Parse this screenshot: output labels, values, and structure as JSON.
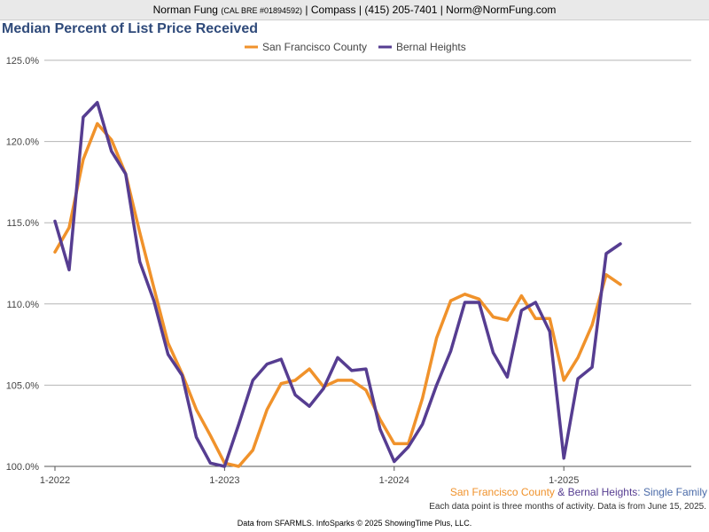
{
  "header": {
    "agent_name": "Norman Fung",
    "license": "(CAL BRE #01894592)",
    "contact": "| Compass | (415) 205-7401 | Norm@NormFung.com"
  },
  "caption": {
    "series_a": "San Francisco County",
    "connector": " & ",
    "series_b": "Bernal Heights",
    "suffix": ": Single Family",
    "note": "Each data point is three months of activity. Data is from June 15, 2025."
  },
  "footer": {
    "source": "Data from SFARMLS. InfoSparks © 2025 ShowingTime Plus, LLC."
  },
  "colors": {
    "san_francisco": "#f0922b",
    "bernal_heights": "#563d91",
    "title": "#2f4a7a",
    "suffix": "#4a6aa8"
  },
  "chart_data": {
    "type": "line",
    "title": "Median Percent of List Price Received",
    "ylim": [
      100,
      125
    ],
    "yticks": [
      100,
      105,
      110,
      115,
      120,
      125
    ],
    "ytick_labels": [
      "100.0%",
      "105.0%",
      "110.0%",
      "115.0%",
      "120.0%",
      "125.0%"
    ],
    "xticks": [
      "1-2022",
      "1-2023",
      "1-2024",
      "1-2025"
    ],
    "x": [
      "2022-01",
      "2022-02",
      "2022-03",
      "2022-04",
      "2022-05",
      "2022-06",
      "2022-07",
      "2022-08",
      "2022-09",
      "2022-10",
      "2022-11",
      "2022-12",
      "2023-01",
      "2023-02",
      "2023-03",
      "2023-04",
      "2023-05",
      "2023-06",
      "2023-07",
      "2023-08",
      "2023-09",
      "2023-10",
      "2023-11",
      "2023-12",
      "2024-01",
      "2024-02",
      "2024-03",
      "2024-04",
      "2024-05",
      "2024-06",
      "2024-07",
      "2024-08",
      "2024-09",
      "2024-10",
      "2024-11",
      "2024-12",
      "2025-01",
      "2025-02",
      "2025-03",
      "2025-04",
      "2025-05"
    ],
    "grid": true,
    "legend_position": "top-center",
    "series": [
      {
        "name": "San Francisco County",
        "values": [
          113.2,
          114.7,
          118.9,
          121.1,
          120.1,
          118.0,
          114.4,
          111.0,
          107.6,
          105.7,
          103.5,
          101.9,
          100.2,
          100.0,
          101.0,
          103.5,
          105.1,
          105.3,
          106.0,
          104.9,
          105.3,
          105.3,
          104.7,
          102.9,
          101.4,
          101.4,
          104.2,
          107.9,
          110.2,
          110.6,
          110.3,
          109.2,
          109.0,
          110.5,
          109.1,
          109.1,
          105.3,
          106.7,
          108.7,
          111.8,
          111.2
        ]
      },
      {
        "name": "Bernal Heights",
        "values": [
          115.1,
          112.1,
          121.5,
          122.4,
          119.4,
          118.0,
          112.6,
          110.2,
          106.9,
          105.6,
          101.8,
          100.2,
          100.0,
          102.6,
          105.3,
          106.3,
          106.6,
          104.4,
          103.7,
          104.8,
          106.7,
          105.9,
          106.0,
          102.3,
          100.3,
          101.2,
          102.6,
          105.0,
          107.1,
          110.1,
          110.1,
          107.0,
          105.5,
          109.6,
          110.1,
          108.3,
          100.5,
          105.4,
          106.1,
          113.1,
          113.7
        ]
      }
    ]
  }
}
